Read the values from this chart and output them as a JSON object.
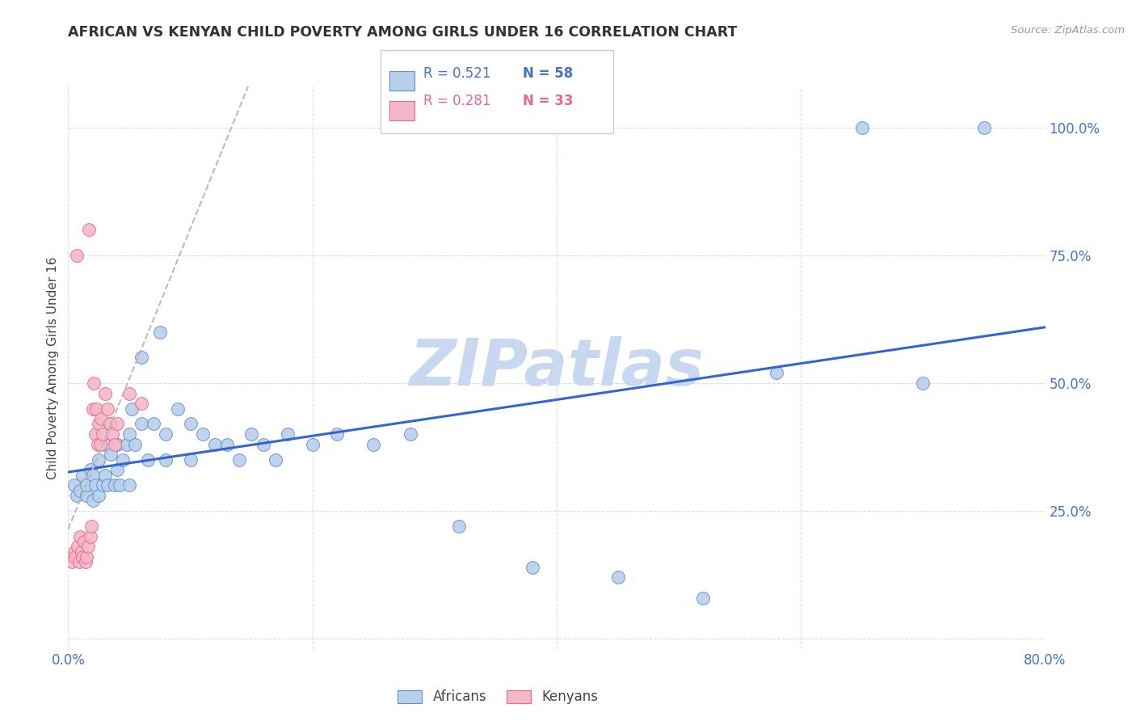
{
  "title": "AFRICAN VS KENYAN CHILD POVERTY AMONG GIRLS UNDER 16 CORRELATION CHART",
  "source": "Source: ZipAtlas.com",
  "ylabel": "Child Poverty Among Girls Under 16",
  "xlim": [
    0.0,
    0.8
  ],
  "ylim": [
    -0.02,
    1.08
  ],
  "background_color": "#ffffff",
  "africans_color": "#b8d0ea",
  "africans_edge_color": "#5b8dd9",
  "kenyans_color": "#f4b8c8",
  "kenyans_edge_color": "#e8678a",
  "regression_african_color": "#3366cc",
  "regression_kenyan_color": "#bbbbbb",
  "watermark_text": "ZIPatlas",
  "watermark_color": "#c8d8f0",
  "legend_r_african": "R = 0.521",
  "legend_n_african": "N = 58",
  "legend_r_kenyan": "R = 0.281",
  "legend_n_kenyan": "N = 33",
  "africans_x": [
    0.005,
    0.007,
    0.01,
    0.012,
    0.015,
    0.015,
    0.018,
    0.02,
    0.02,
    0.022,
    0.025,
    0.025,
    0.028,
    0.03,
    0.03,
    0.032,
    0.035,
    0.035,
    0.038,
    0.04,
    0.04,
    0.042,
    0.045,
    0.048,
    0.05,
    0.05,
    0.052,
    0.055,
    0.06,
    0.06,
    0.065,
    0.07,
    0.075,
    0.08,
    0.08,
    0.09,
    0.1,
    0.1,
    0.11,
    0.12,
    0.13,
    0.14,
    0.15,
    0.16,
    0.17,
    0.18,
    0.2,
    0.22,
    0.25,
    0.28,
    0.32,
    0.38,
    0.45,
    0.52,
    0.58,
    0.65,
    0.7,
    0.75
  ],
  "africans_y": [
    0.3,
    0.28,
    0.29,
    0.32,
    0.28,
    0.3,
    0.33,
    0.27,
    0.32,
    0.3,
    0.28,
    0.35,
    0.3,
    0.32,
    0.38,
    0.3,
    0.36,
    0.42,
    0.3,
    0.33,
    0.38,
    0.3,
    0.35,
    0.38,
    0.3,
    0.4,
    0.45,
    0.38,
    0.42,
    0.55,
    0.35,
    0.42,
    0.6,
    0.35,
    0.4,
    0.45,
    0.35,
    0.42,
    0.4,
    0.38,
    0.38,
    0.35,
    0.4,
    0.38,
    0.35,
    0.4,
    0.38,
    0.4,
    0.38,
    0.4,
    0.22,
    0.14,
    0.12,
    0.08,
    0.52,
    1.0,
    0.5,
    1.0
  ],
  "kenyans_x": [
    0.003,
    0.005,
    0.006,
    0.007,
    0.008,
    0.009,
    0.01,
    0.011,
    0.012,
    0.013,
    0.014,
    0.015,
    0.016,
    0.017,
    0.018,
    0.019,
    0.02,
    0.021,
    0.022,
    0.023,
    0.024,
    0.025,
    0.026,
    0.027,
    0.028,
    0.03,
    0.032,
    0.034,
    0.036,
    0.038,
    0.04,
    0.05,
    0.06
  ],
  "kenyans_y": [
    0.15,
    0.17,
    0.16,
    0.75,
    0.18,
    0.15,
    0.2,
    0.17,
    0.16,
    0.19,
    0.15,
    0.16,
    0.18,
    0.8,
    0.2,
    0.22,
    0.45,
    0.5,
    0.4,
    0.45,
    0.38,
    0.42,
    0.38,
    0.43,
    0.4,
    0.48,
    0.45,
    0.42,
    0.4,
    0.38,
    0.42,
    0.48,
    0.46
  ]
}
